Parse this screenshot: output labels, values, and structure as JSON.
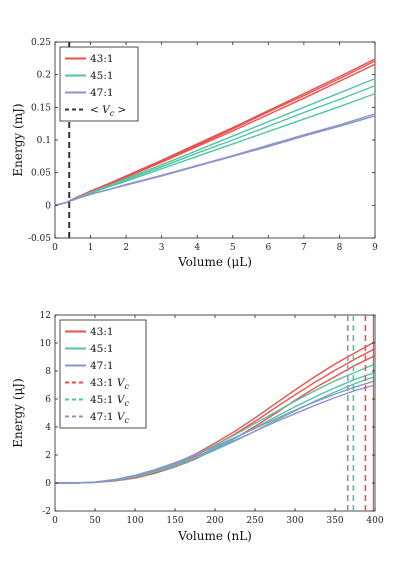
{
  "chart_data": [
    {
      "type": "line",
      "xlabel": "Volume (μL)",
      "ylabel": "Energy (mJ)",
      "xlim": [
        0,
        9
      ],
      "ylim": [
        -0.05,
        0.25
      ],
      "xticks": [
        0,
        1,
        2,
        3,
        4,
        5,
        6,
        7,
        8,
        9
      ],
      "yticks": [
        -0.05,
        0,
        0.05,
        0.1,
        0.15,
        0.2,
        0.25
      ],
      "ytick_labels": [
        "-0.05",
        "0",
        "0.05",
        "0.1",
        "0.15",
        "0.2",
        "0.25"
      ],
      "grid": false,
      "legend_position": "top-left",
      "series": [
        {
          "name": "43:1",
          "color": "#e9514d",
          "curves": [
            {
              "x": [
                0,
                0.3,
                0.6,
                1,
                1.5,
                2,
                3,
                4,
                5,
                6,
                7,
                8,
                9
              ],
              "y": [
                0,
                0.004,
                0.012,
                0.021,
                0.032,
                0.043,
                0.066,
                0.09,
                0.114,
                0.139,
                0.164,
                0.19,
                0.216
              ]
            },
            {
              "x": [
                0,
                0.3,
                0.6,
                1,
                1.5,
                2,
                3,
                4,
                5,
                6,
                7,
                8,
                9
              ],
              "y": [
                0,
                0.004,
                0.012,
                0.021,
                0.033,
                0.044,
                0.068,
                0.092,
                0.117,
                0.143,
                0.168,
                0.194,
                0.221
              ]
            },
            {
              "x": [
                0,
                0.3,
                0.6,
                1,
                1.5,
                2,
                3,
                4,
                5,
                6,
                7,
                8,
                9
              ],
              "y": [
                0,
                0.004,
                0.012,
                0.022,
                0.033,
                0.045,
                0.069,
                0.094,
                0.119,
                0.145,
                0.171,
                0.197,
                0.224
              ]
            }
          ]
        },
        {
          "name": "45:1",
          "color": "#52c4a4",
          "curves": [
            {
              "x": [
                0,
                0.3,
                0.6,
                1,
                1.5,
                2,
                3,
                4,
                5,
                6,
                7,
                8,
                9
              ],
              "y": [
                0,
                0.004,
                0.011,
                0.019,
                0.029,
                0.039,
                0.059,
                0.08,
                0.1,
                0.121,
                0.142,
                0.162,
                0.183
              ]
            },
            {
              "x": [
                0,
                0.3,
                0.6,
                1,
                1.5,
                2,
                3,
                4,
                5,
                6,
                7,
                8,
                9
              ],
              "y": [
                0,
                0.004,
                0.011,
                0.02,
                0.03,
                0.041,
                0.062,
                0.084,
                0.106,
                0.128,
                0.15,
                0.172,
                0.194
              ]
            },
            {
              "x": [
                0,
                0.3,
                0.6,
                1,
                1.5,
                2,
                3,
                4,
                5,
                6,
                7,
                8,
                9
              ],
              "y": [
                0,
                0.004,
                0.011,
                0.019,
                0.028,
                0.037,
                0.056,
                0.075,
                0.094,
                0.113,
                0.132,
                0.151,
                0.171
              ]
            }
          ]
        },
        {
          "name": "47:1",
          "color": "#8c94cc",
          "curves": [
            {
              "x": [
                0,
                0.3,
                0.6,
                1,
                1.5,
                2,
                3,
                4,
                5,
                6,
                7,
                8,
                9
              ],
              "y": [
                0,
                0.004,
                0.01,
                0.017,
                0.024,
                0.031,
                0.045,
                0.06,
                0.075,
                0.09,
                0.106,
                0.121,
                0.137
              ]
            },
            {
              "x": [
                0,
                0.3,
                0.6,
                1,
                1.5,
                2,
                3,
                4,
                5,
                6,
                7,
                8,
                9
              ],
              "y": [
                0,
                0.004,
                0.01,
                0.017,
                0.024,
                0.032,
                0.046,
                0.061,
                0.076,
                0.092,
                0.108,
                0.123,
                0.14
              ]
            }
          ]
        },
        {
          "name": "< V_c >",
          "color": "#333333",
          "dashed": true,
          "vline_x": 0.4
        }
      ]
    },
    {
      "type": "line",
      "xlabel": "Volume (nL)",
      "ylabel": "Energy (μJ)",
      "xlim": [
        0,
        400
      ],
      "ylim": [
        -2,
        12
      ],
      "xticks": [
        0,
        50,
        100,
        150,
        200,
        250,
        300,
        350,
        400
      ],
      "yticks": [
        -2,
        0,
        2,
        4,
        6,
        8,
        10,
        12
      ],
      "grid": false,
      "legend_position": "top-left",
      "series": [
        {
          "name": "43:1",
          "color": "#e9514d",
          "curves": [
            {
              "x": [
                0,
                25,
                50,
                75,
                100,
                125,
                150,
                175,
                200,
                225,
                250,
                275,
                300,
                325,
                350,
                375,
                400
              ],
              "y": [
                0,
                0,
                0.05,
                0.2,
                0.45,
                0.85,
                1.35,
                1.95,
                2.7,
                3.5,
                4.4,
                5.35,
                6.3,
                7.2,
                8.05,
                8.85,
                9.6
              ]
            },
            {
              "x": [
                0,
                25,
                50,
                75,
                100,
                125,
                150,
                175,
                200,
                225,
                250,
                275,
                300,
                325,
                350,
                375,
                400
              ],
              "y": [
                0,
                0,
                0.05,
                0.2,
                0.45,
                0.85,
                1.4,
                2.05,
                2.85,
                3.7,
                4.65,
                5.65,
                6.65,
                7.6,
                8.5,
                9.3,
                10.1
              ]
            },
            {
              "x": [
                0,
                25,
                50,
                75,
                100,
                125,
                150,
                175,
                200,
                225,
                250,
                275,
                300,
                325,
                350,
                375,
                400
              ],
              "y": [
                0,
                0,
                0.04,
                0.15,
                0.35,
                0.7,
                1.15,
                1.7,
                2.4,
                3.2,
                4.05,
                4.95,
                5.9,
                6.8,
                7.6,
                8.4,
                9.1
              ]
            }
          ]
        },
        {
          "name": "45:1",
          "color": "#52c4a4",
          "curves": [
            {
              "x": [
                0,
                25,
                50,
                75,
                100,
                125,
                150,
                175,
                200,
                225,
                250,
                275,
                300,
                325,
                350,
                375,
                400
              ],
              "y": [
                0,
                0,
                0.06,
                0.22,
                0.5,
                0.9,
                1.4,
                2.0,
                2.7,
                3.45,
                4.25,
                5.05,
                5.85,
                6.6,
                7.3,
                7.9,
                8.5
              ]
            },
            {
              "x": [
                0,
                25,
                50,
                75,
                100,
                125,
                150,
                175,
                200,
                225,
                250,
                275,
                300,
                325,
                350,
                375,
                400
              ],
              "y": [
                0,
                0,
                0.05,
                0.2,
                0.45,
                0.85,
                1.3,
                1.85,
                2.5,
                3.2,
                3.95,
                4.7,
                5.45,
                6.15,
                6.8,
                7.4,
                7.9
              ]
            },
            {
              "x": [
                0,
                25,
                50,
                75,
                100,
                125,
                150,
                175,
                200,
                225,
                250,
                275,
                300,
                325,
                350,
                375,
                400
              ],
              "y": [
                0,
                0,
                0.05,
                0.18,
                0.42,
                0.78,
                1.22,
                1.75,
                2.35,
                3.0,
                3.7,
                4.45,
                5.15,
                5.85,
                6.5,
                7.1,
                7.6
              ]
            }
          ]
        },
        {
          "name": "47:1",
          "color": "#8c94cc",
          "curves": [
            {
              "x": [
                0,
                25,
                50,
                75,
                100,
                125,
                150,
                175,
                200,
                225,
                250,
                275,
                300,
                325,
                350,
                375,
                400
              ],
              "y": [
                0,
                0,
                0.07,
                0.25,
                0.55,
                0.95,
                1.45,
                2.0,
                2.6,
                3.25,
                3.9,
                4.55,
                5.2,
                5.8,
                6.35,
                6.85,
                7.3
              ]
            },
            {
              "x": [
                0,
                25,
                50,
                75,
                100,
                125,
                150,
                175,
                200,
                225,
                250,
                275,
                300,
                325,
                350,
                375,
                400
              ],
              "y": [
                0,
                0,
                0.06,
                0.22,
                0.5,
                0.88,
                1.35,
                1.85,
                2.45,
                3.05,
                3.7,
                4.35,
                4.95,
                5.55,
                6.1,
                6.6,
                7.0
              ]
            }
          ]
        },
        {
          "name": "43:1 V_c",
          "color": "#e9514d",
          "dashed": true,
          "vline_x": 388
        },
        {
          "name": "45:1 V_c",
          "color": "#52c4a4",
          "dashed": true,
          "vline_x": 373
        },
        {
          "name": "47:1 V_c",
          "color": "#8c94cc",
          "dashed": true,
          "vline_x": 366
        }
      ]
    }
  ],
  "extra_lines": [
    {
      "chart": 1,
      "x": 398,
      "color": "#e9514d",
      "dashed": false
    }
  ]
}
